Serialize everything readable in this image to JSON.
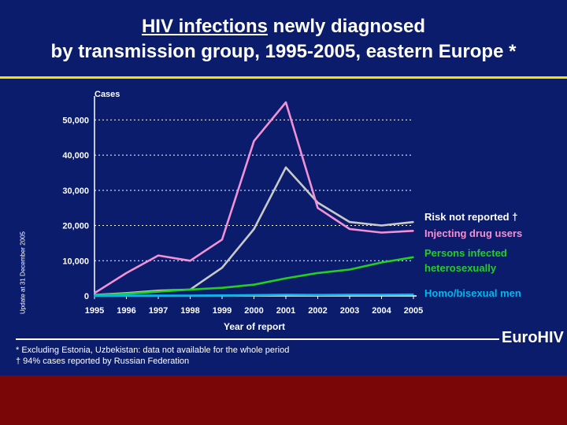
{
  "slide": {
    "title_underlined": "HIV infections",
    "title_rest": " newly diagnosed",
    "title_line2": "by transmission group, 1995-2005, eastern Europe *",
    "side_note": "Update at 31 December 2005",
    "brand": "EuroHIV",
    "footnotes": [
      "* Excluding Estonia, Uzbekistan: data not available for the whole period",
      "† 94% cases reported by Russian Federation"
    ],
    "colors": {
      "background": "#0a1c6b",
      "rule": "#f2e400",
      "footer": "#7b0607"
    }
  },
  "chart_data": {
    "type": "line",
    "title": "",
    "xlabel": "Year of report",
    "ylabel": "Cases",
    "x": [
      "1995",
      "1996",
      "1997",
      "1998",
      "1999",
      "2000",
      "2001",
      "2002",
      "2003",
      "2004",
      "2005"
    ],
    "ylim": [
      0,
      55000
    ],
    "yticks": [
      0,
      10000,
      20000,
      30000,
      40000,
      50000
    ],
    "ytick_labels": [
      "0",
      "10,000",
      "20,000",
      "30,000",
      "40,000",
      "50,000"
    ],
    "grid": "dotted horizontal",
    "series": [
      {
        "name": "Risk not reported †",
        "color": "#c9c9c9",
        "values": [
          300,
          800,
          1500,
          1800,
          8000,
          19000,
          36500,
          26500,
          21000,
          20000,
          21000
        ]
      },
      {
        "name": "Injecting drug users",
        "color": "#f291d6",
        "values": [
          800,
          6500,
          11500,
          10000,
          16000,
          44000,
          55000,
          25000,
          19000,
          18000,
          18500
        ]
      },
      {
        "name": "Persons infected heterosexually",
        "color": "#22d022",
        "values": [
          200,
          600,
          1200,
          1800,
          2300,
          3200,
          5000,
          6500,
          7500,
          9500,
          11000
        ]
      },
      {
        "name": "Homo/bisexual men",
        "color": "#00b7ee",
        "values": [
          50,
          80,
          100,
          120,
          150,
          250,
          350,
          300,
          350,
          350,
          400
        ]
      }
    ],
    "legend": [
      {
        "lines": [
          "Risk not reported †"
        ],
        "color": "#ffffff"
      },
      {
        "lines": [
          "Injecting drug users"
        ],
        "color": "#f291d6"
      },
      {
        "lines": [
          "Persons infected",
          "heterosexually"
        ],
        "color": "#22d022"
      },
      {
        "lines": [
          "Homo/bisexual men"
        ],
        "color": "#00b7ee"
      }
    ]
  }
}
